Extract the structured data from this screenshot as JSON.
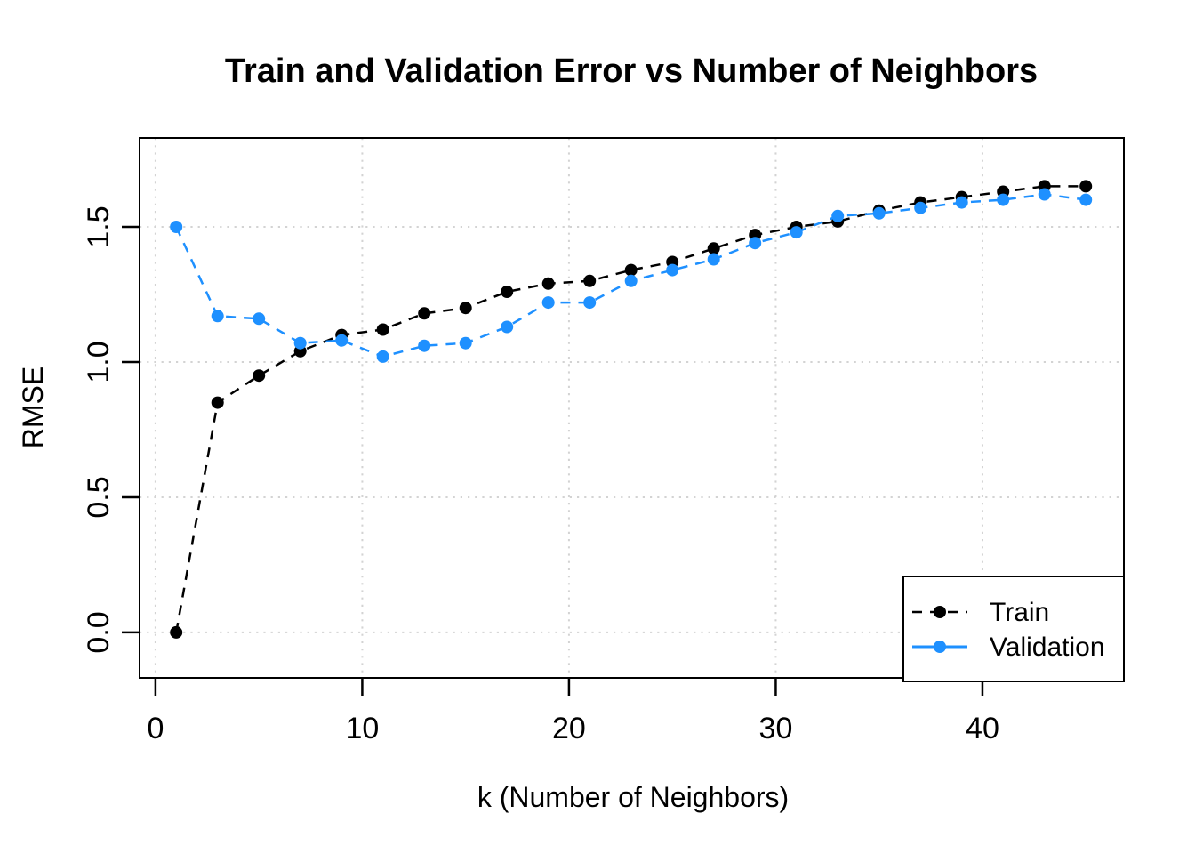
{
  "figure": {
    "background": "#FFFFFF",
    "foreground": "#000000"
  },
  "chart_data": {
    "type": "line",
    "title": "Train and Validation Error vs Number of Neighbors",
    "xlabel": "k (Number of Neighbors)",
    "ylabel": "RMSE",
    "x": [
      1,
      3,
      5,
      7,
      9,
      11,
      13,
      15,
      17,
      19,
      21,
      23,
      25,
      27,
      29,
      31,
      33,
      35,
      37,
      39,
      41,
      43,
      45
    ],
    "series": [
      {
        "name": "Train",
        "color": "#000000",
        "marker": "filled-circle",
        "line_style": "dashed",
        "legend_line_style": "dashed",
        "values": [
          0.0,
          0.85,
          0.95,
          1.04,
          1.1,
          1.12,
          1.18,
          1.2,
          1.26,
          1.29,
          1.3,
          1.34,
          1.37,
          1.42,
          1.47,
          1.5,
          1.52,
          1.56,
          1.59,
          1.61,
          1.63,
          1.65,
          1.65
        ]
      },
      {
        "name": "Validation",
        "color": "#1E90FF",
        "marker": "filled-circle",
        "line_style": "dashed",
        "legend_line_style": "solid",
        "values": [
          1.5,
          1.17,
          1.16,
          1.07,
          1.08,
          1.02,
          1.06,
          1.07,
          1.13,
          1.22,
          1.22,
          1.3,
          1.34,
          1.38,
          1.44,
          1.48,
          1.54,
          1.55,
          1.57,
          1.59,
          1.6,
          1.62,
          1.6
        ]
      }
    ],
    "x_ticks": [
      0,
      10,
      20,
      30,
      40
    ],
    "y_ticks": [
      "0.0",
      "0.5",
      "1.0",
      "1.5"
    ],
    "xlim": [
      -0.77,
      46.84
    ],
    "ylim": [
      -0.168,
      1.829
    ],
    "grid": true,
    "grid_color": "#D3D3D3",
    "legend_position": "bottom-right"
  }
}
